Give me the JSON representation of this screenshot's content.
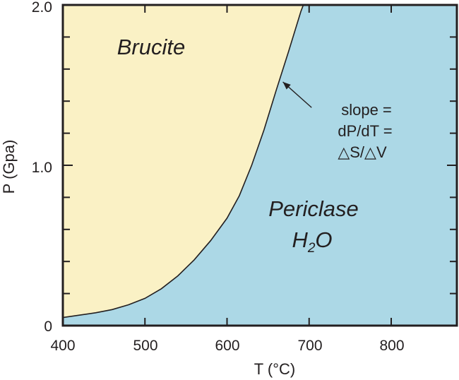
{
  "chart_data": {
    "type": "area",
    "title": "",
    "xlabel": "T (°C)",
    "ylabel": "P (Gpa)",
    "xlim": [
      400,
      880
    ],
    "ylim": [
      0,
      2.0
    ],
    "x_ticks": [
      400,
      500,
      600,
      700,
      800
    ],
    "y_ticks": [
      0,
      1.0,
      2.0
    ],
    "x_tick_labels": [
      "400",
      "500",
      "600",
      "700",
      "800"
    ],
    "y_tick_labels": [
      "0",
      "1.0",
      "2.0"
    ],
    "y_minor_step": 0.2,
    "grid": false,
    "colors": {
      "brucite": "#faf1c5",
      "periclase": "#acd8e6",
      "line": "#231f20"
    },
    "regions": {
      "upper_left": "Brucite",
      "lower_right_line1": "Periclase",
      "lower_right_line2_main": "H",
      "lower_right_line2_sub": "2",
      "lower_right_line2_end": "O"
    },
    "series": [
      {
        "x": [
          400,
          420,
          440,
          460,
          480,
          500,
          520,
          540,
          560,
          580,
          600,
          615,
          630,
          645,
          660,
          675,
          690,
          693
        ],
        "y": [
          0.05,
          0.065,
          0.08,
          0.1,
          0.13,
          0.17,
          0.23,
          0.31,
          0.41,
          0.53,
          0.67,
          0.81,
          1.0,
          1.22,
          1.47,
          1.71,
          1.96,
          2.0
        ]
      }
    ],
    "annotation": {
      "lines": [
        "slope =",
        "dP/dT =",
        "△S/△V"
      ],
      "arrow_from": [
        703,
        1.36
      ],
      "arrow_to": [
        668,
        1.52
      ]
    }
  }
}
